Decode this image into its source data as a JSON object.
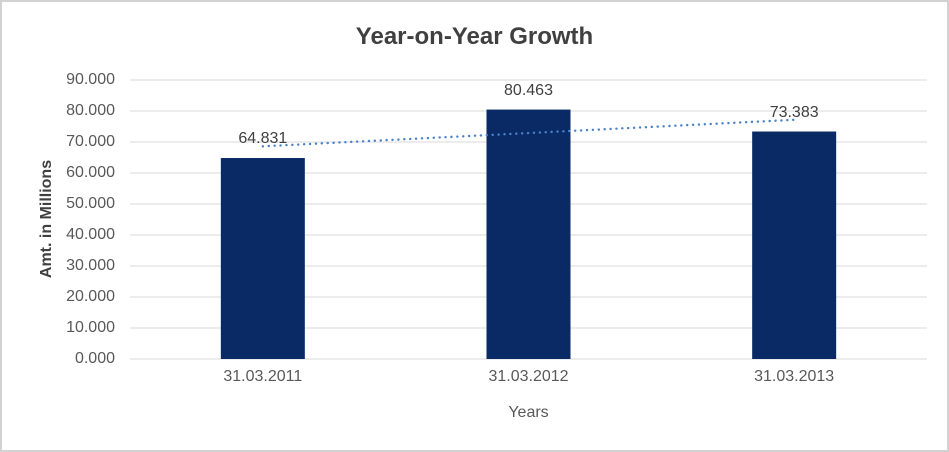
{
  "chart_data": {
    "type": "bar",
    "title": "Year-on-Year Growth",
    "xlabel": "Years",
    "ylabel": "Amt. in Millions",
    "categories": [
      "31.03.2011",
      "31.03.2012",
      "31.03.2013"
    ],
    "values": [
      64.831,
      80.463,
      73.383
    ],
    "value_labels": [
      "64.831",
      "80.463",
      "73.383"
    ],
    "yticks": [
      {
        "value": 90,
        "label": "90.000"
      },
      {
        "value": 80,
        "label": "80.000"
      },
      {
        "value": 70,
        "label": "70.000"
      },
      {
        "value": 60,
        "label": "60.000"
      },
      {
        "value": 50,
        "label": "50.000"
      },
      {
        "value": 40,
        "label": "40.000"
      },
      {
        "value": 30,
        "label": "30.000"
      },
      {
        "value": 20,
        "label": "20.000"
      },
      {
        "value": 10,
        "label": "10.000"
      },
      {
        "value": 0,
        "label": "0.000"
      }
    ],
    "ylim": [
      0,
      90
    ],
    "grid": true,
    "legend_position": "none",
    "trendline": {
      "type": "linear",
      "style": "dotted"
    },
    "colors": {
      "bar": "#0A2A66",
      "trendline": "#4A82C8",
      "gridline": "#D9D9D9",
      "title_text": "#404040",
      "axis_text": "#595959",
      "data_label_text": "#404040",
      "border": "#D2D2D2"
    }
  }
}
